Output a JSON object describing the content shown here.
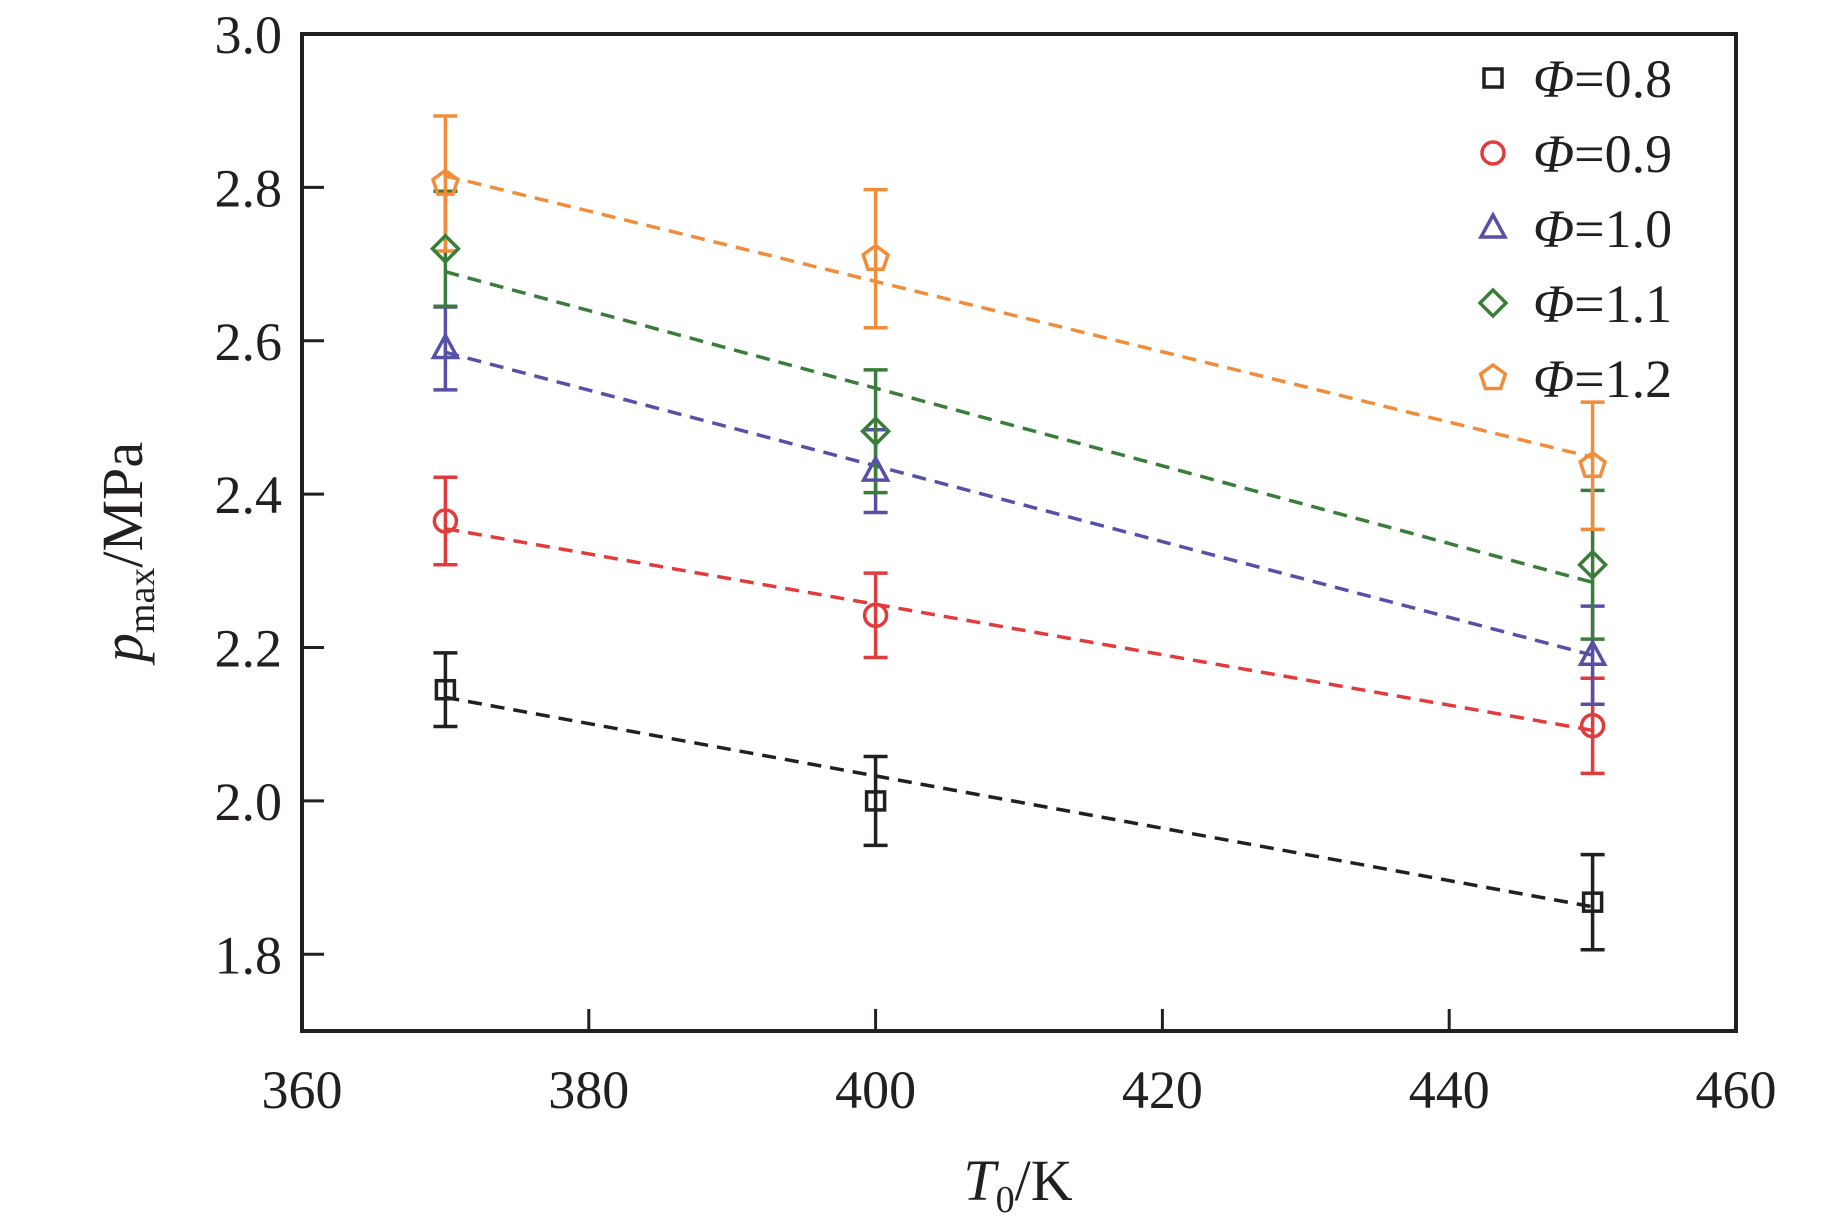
{
  "chart_data": {
    "type": "scatter",
    "xlabel": {
      "symbol": "T",
      "subscript": "0",
      "unit": "/K"
    },
    "ylabel": {
      "symbol": "p",
      "subscript": "max",
      "unit": "/MPa"
    },
    "xlim": [
      360,
      460
    ],
    "ylim": [
      1.7,
      3.0
    ],
    "xticks": [
      360,
      380,
      400,
      420,
      440,
      460
    ],
    "xtick_labels": [
      "360",
      "380",
      "400",
      "420",
      "440",
      "460"
    ],
    "yticks": [
      1.8,
      2.0,
      2.2,
      2.4,
      2.6,
      2.8,
      3.0
    ],
    "ytick_labels": [
      "1.8",
      "2.0",
      "2.2",
      "2.4",
      "2.6",
      "2.8",
      "3.0"
    ],
    "grid": false,
    "legend_position": "top-right",
    "series": [
      {
        "name": "Φ=0.8",
        "legend_symbol": "Φ",
        "legend_value": "=0.8",
        "marker": "square",
        "color": "#231f20",
        "x": [
          370,
          400,
          450
        ],
        "y": [
          2.145,
          2.0,
          1.868
        ],
        "yerr": [
          0.048,
          0.058,
          0.062
        ],
        "fit": {
          "x": [
            370,
            450
          ],
          "y": [
            2.135,
            1.862
          ]
        }
      },
      {
        "name": "Φ=0.9",
        "legend_symbol": "Φ",
        "legend_value": "=0.9",
        "marker": "circle",
        "color": "#e03c3c",
        "x": [
          370,
          400,
          450
        ],
        "y": [
          2.365,
          2.242,
          2.098
        ],
        "yerr": [
          0.057,
          0.055,
          0.062
        ],
        "fit": {
          "x": [
            370,
            450
          ],
          "y": [
            2.355,
            2.092
          ]
        }
      },
      {
        "name": "Φ=1.0",
        "legend_symbol": "Φ",
        "legend_value": "=1.0",
        "marker": "triangle",
        "color": "#5850a6",
        "x": [
          370,
          400,
          450
        ],
        "y": [
          2.59,
          2.43,
          2.19
        ],
        "yerr": [
          0.054,
          0.054,
          0.064
        ],
        "fit": {
          "x": [
            370,
            450
          ],
          "y": [
            2.585,
            2.19
          ]
        }
      },
      {
        "name": "Φ=1.1",
        "legend_symbol": "Φ",
        "legend_value": "=1.1",
        "marker": "diamond",
        "color": "#3a7d3a",
        "x": [
          370,
          400,
          450
        ],
        "y": [
          2.72,
          2.482,
          2.308
        ],
        "yerr": [
          0.075,
          0.08,
          0.097
        ],
        "fit": {
          "x": [
            370,
            450
          ],
          "y": [
            2.69,
            2.285
          ]
        }
      },
      {
        "name": "Φ=1.2",
        "legend_symbol": "Φ",
        "legend_value": "=1.2",
        "marker": "pentagon",
        "color": "#f08c3a",
        "x": [
          370,
          400,
          450
        ],
        "y": [
          2.805,
          2.707,
          2.437
        ],
        "yerr": [
          0.088,
          0.09,
          0.083
        ],
        "fit": {
          "x": [
            370,
            450
          ],
          "y": [
            2.815,
            2.448
          ]
        }
      }
    ]
  }
}
